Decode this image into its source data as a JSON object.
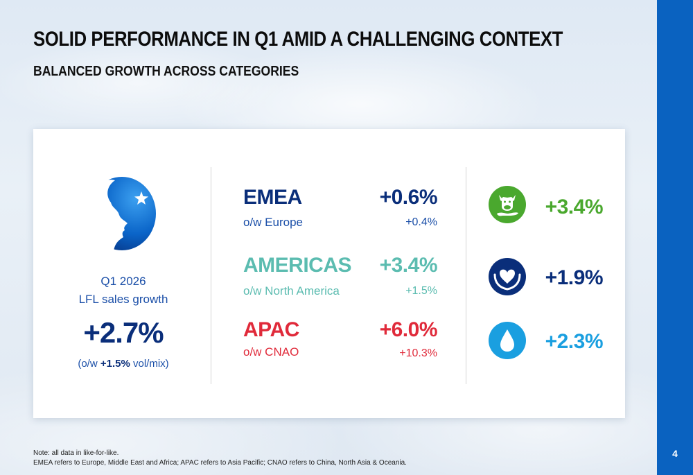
{
  "header": {
    "title": "SOLID PERFORMANCE IN Q1 AMID A CHALLENGING CONTEXT",
    "subtitle": "BALANCED GROWTH ACROSS CATEGORIES"
  },
  "kpi": {
    "period": "Q1 2026",
    "label": "LFL sales growth",
    "value": "+2.7%",
    "note_prefix": "(o/w ",
    "note_value": "+1.5%",
    "note_suffix": " vol/mix)"
  },
  "regions": [
    {
      "name": "EMEA",
      "sub_label": "o/w Europe",
      "value": "+0.6%",
      "sub_value": "+0.4%",
      "color": "#0a2e7a",
      "sub_color": "#1b4fa8"
    },
    {
      "name": "AMERICAS",
      "sub_label": "o/w North America",
      "value": "+3.4%",
      "sub_value": "+1.5%",
      "color": "#5bbcb0",
      "sub_color": "#5bbcb0"
    },
    {
      "name": "APAC",
      "sub_label": "o/w CNAO",
      "value": "+6.0%",
      "sub_value": "+10.3%",
      "color": "#e02a3a",
      "sub_color": "#e02a3a"
    }
  ],
  "categories": [
    {
      "icon": "dairy-cow-icon",
      "value": "+3.4%",
      "color": "#4aa82e"
    },
    {
      "icon": "heart-hands-icon",
      "value": "+1.9%",
      "color": "#0a2e7a"
    },
    {
      "icon": "water-drop-icon",
      "value": "+2.3%",
      "color": "#1a9fe0"
    }
  ],
  "footnotes": {
    "line1": "Note: all data in like-for-like.",
    "line2": "EMEA refers to Europe, Middle East and Africa; APAC refers to Asia Pacific; CNAO refers to China, North Asia & Oceania."
  },
  "page_number": "4",
  "colors": {
    "brand_blue": "#0a62c0",
    "navy": "#0a2e7a"
  }
}
